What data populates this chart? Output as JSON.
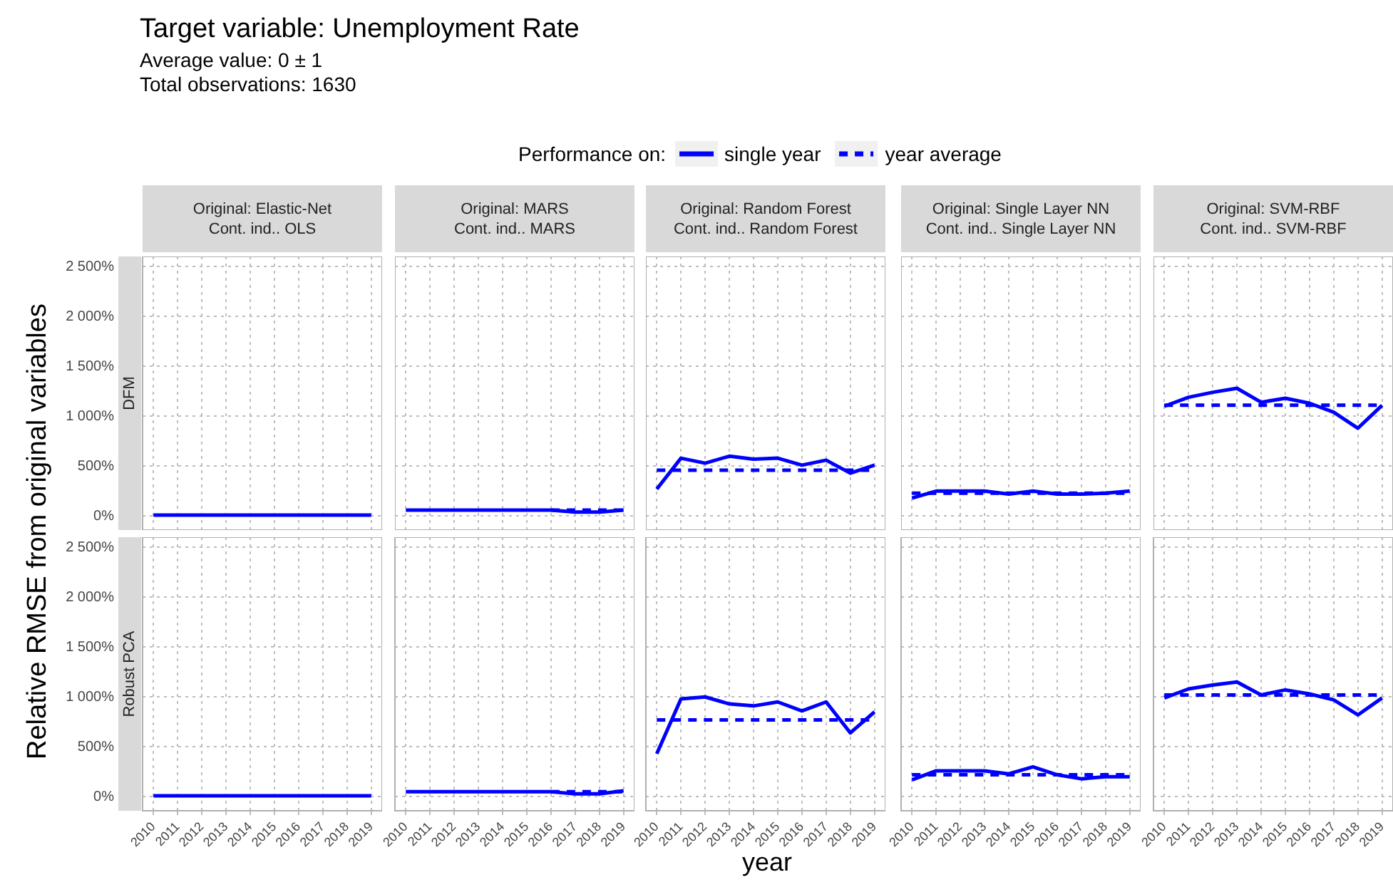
{
  "chart_data": [
    {
      "type": "other",
      "title": "Target variable: Unemployment Rate",
      "subtitle": "Average value: 0 ± 1\nTotal observations: 1630",
      "xlabel": "year",
      "ylabel": "Relative RMSE from original variables"
    },
    {
      "type": "line",
      "title": "Original: Elastic-Net\nCont. ind.. OLS",
      "annotations": [
        "DFM"
      ],
      "legend_title": "Performance on:",
      "legend": "top",
      "tick_labels": "y",
      "grid": true,
      "x": [
        2010,
        2011,
        2012,
        2013,
        2014,
        2015,
        2016,
        2017,
        2018,
        2019
      ],
      "xlim": [
        2009.55,
        2019.45
      ],
      "xticks": [
        2010,
        2011,
        2012,
        2013,
        2014,
        2015,
        2016,
        2017,
        2018,
        2019
      ],
      "ylim": [
        -140,
        2600
      ],
      "yticks": [
        {
          "value": 0,
          "label": "0%"
        },
        {
          "value": 500,
          "label": "500%"
        },
        {
          "value": 1000,
          "label": "1 000%"
        },
        {
          "value": 1500,
          "label": "1 500%"
        },
        {
          "value": 2000,
          "label": "2 000%"
        },
        {
          "value": 2500,
          "label": "2 500%"
        }
      ],
      "series": [
        {
          "name": "single year",
          "color": "#0000ff",
          "line_style": "solid",
          "values": [
            10,
            10,
            10,
            10,
            10,
            10,
            10,
            10,
            10,
            10
          ]
        },
        {
          "name": "year average",
          "color": "#0000ff",
          "line_style": "dashed",
          "values": [
            null,
            null,
            null,
            null,
            null,
            null,
            null,
            null,
            null,
            null
          ]
        }
      ]
    },
    {
      "type": "line",
      "title": "Original: MARS\nCont. ind.. MARS",
      "tick_labels": false,
      "grid": true,
      "x": [
        2010,
        2011,
        2012,
        2013,
        2014,
        2015,
        2016,
        2017,
        2018,
        2019
      ],
      "xlim": [
        2009.55,
        2019.45
      ],
      "xticks": [
        2010,
        2011,
        2012,
        2013,
        2014,
        2015,
        2016,
        2017,
        2018,
        2019
      ],
      "ylim": [
        -140,
        2600
      ],
      "yticks": [
        0,
        500,
        1000,
        1500,
        2000,
        2500
      ],
      "series": [
        {
          "color": "#0000ff",
          "line_style": "solid",
          "values": [
            60,
            60,
            60,
            60,
            60,
            60,
            60,
            40,
            40,
            60
          ]
        },
        {
          "color": "#0000ff",
          "line_style": "dashed",
          "values": [
            null,
            null,
            null,
            null,
            null,
            null,
            60,
            60,
            60,
            60
          ]
        }
      ]
    },
    {
      "type": "line",
      "title": "Original: Random Forest\nCont. ind.. Random Forest",
      "tick_labels": false,
      "grid": true,
      "x": [
        2010,
        2011,
        2012,
        2013,
        2014,
        2015,
        2016,
        2017,
        2018,
        2019
      ],
      "xlim": [
        2009.55,
        2019.45
      ],
      "xticks": [
        2010,
        2011,
        2012,
        2013,
        2014,
        2015,
        2016,
        2017,
        2018,
        2019
      ],
      "ylim": [
        -140,
        2600
      ],
      "yticks": [
        0,
        500,
        1000,
        1500,
        2000,
        2500
      ],
      "series": [
        {
          "color": "#0000ff",
          "line_style": "solid",
          "values": [
            270,
            580,
            530,
            600,
            570,
            580,
            510,
            560,
            430,
            510
          ]
        },
        {
          "color": "#0000ff",
          "line_style": "dashed",
          "values": [
            460,
            460,
            460,
            460,
            460,
            460,
            460,
            460,
            460,
            460
          ]
        }
      ]
    },
    {
      "type": "line",
      "title": "Original: Single Layer NN\nCont. ind.. Single Layer NN",
      "tick_labels": false,
      "grid": true,
      "x": [
        2010,
        2011,
        2012,
        2013,
        2014,
        2015,
        2016,
        2017,
        2018,
        2019
      ],
      "xlim": [
        2009.55,
        2019.45
      ],
      "xticks": [
        2010,
        2011,
        2012,
        2013,
        2014,
        2015,
        2016,
        2017,
        2018,
        2019
      ],
      "ylim": [
        -140,
        2600
      ],
      "yticks": [
        0,
        500,
        1000,
        1500,
        2000,
        2500
      ],
      "series": [
        {
          "color": "#0000ff",
          "line_style": "solid",
          "values": [
            180,
            250,
            250,
            250,
            220,
            250,
            220,
            220,
            230,
            250
          ]
        },
        {
          "color": "#0000ff",
          "line_style": "dashed",
          "values": [
            230,
            230,
            230,
            230,
            230,
            230,
            230,
            230,
            230,
            230
          ]
        }
      ]
    },
    {
      "type": "line",
      "title": "Original: SVM-RBF\nCont. ind.. SVM-RBF",
      "tick_labels": false,
      "grid": true,
      "x": [
        2010,
        2011,
        2012,
        2013,
        2014,
        2015,
        2016,
        2017,
        2018,
        2019
      ],
      "xlim": [
        2009.55,
        2019.45
      ],
      "xticks": [
        2010,
        2011,
        2012,
        2013,
        2014,
        2015,
        2016,
        2017,
        2018,
        2019
      ],
      "ylim": [
        -140,
        2600
      ],
      "yticks": [
        0,
        500,
        1000,
        1500,
        2000,
        2500
      ],
      "series": [
        {
          "color": "#0000ff",
          "line_style": "solid",
          "values": [
            1100,
            1190,
            1240,
            1280,
            1140,
            1180,
            1130,
            1040,
            880,
            1110
          ]
        },
        {
          "color": "#0000ff",
          "line_style": "dashed",
          "values": [
            1110,
            1110,
            1110,
            1110,
            1110,
            1110,
            1110,
            1110,
            1110,
            1110
          ]
        }
      ]
    },
    {
      "type": "line",
      "annotations": [
        "Robust PCA"
      ],
      "grid": true,
      "x": [
        2010,
        2011,
        2012,
        2013,
        2014,
        2015,
        2016,
        2017,
        2018,
        2019
      ],
      "xlim": [
        2009.55,
        2019.45
      ],
      "xticks": [
        2010,
        2011,
        2012,
        2013,
        2014,
        2015,
        2016,
        2017,
        2018,
        2019
      ],
      "ylim": [
        -140,
        2600
      ],
      "yticks": [
        {
          "value": 0,
          "label": "0%"
        },
        {
          "value": 500,
          "label": "500%"
        },
        {
          "value": 1000,
          "label": "1 000%"
        },
        {
          "value": 1500,
          "label": "1 500%"
        },
        {
          "value": 2000,
          "label": "2 000%"
        },
        {
          "value": 2500,
          "label": "2 500%"
        }
      ],
      "series": [
        {
          "color": "#0000ff",
          "line_style": "solid",
          "values": [
            10,
            10,
            10,
            10,
            10,
            10,
            10,
            10,
            10,
            10
          ]
        },
        {
          "color": "#0000ff",
          "line_style": "dashed",
          "values": [
            null,
            null,
            null,
            null,
            null,
            null,
            null,
            null,
            null,
            null
          ]
        }
      ]
    },
    {
      "type": "line",
      "tick_labels": "x",
      "grid": true,
      "x": [
        2010,
        2011,
        2012,
        2013,
        2014,
        2015,
        2016,
        2017,
        2018,
        2019
      ],
      "xlim": [
        2009.55,
        2019.45
      ],
      "xticks": [
        2010,
        2011,
        2012,
        2013,
        2014,
        2015,
        2016,
        2017,
        2018,
        2019
      ],
      "ylim": [
        -140,
        2600
      ],
      "yticks": [
        0,
        500,
        1000,
        1500,
        2000,
        2500
      ],
      "series": [
        {
          "color": "#0000ff",
          "line_style": "solid",
          "values": [
            50,
            50,
            50,
            50,
            50,
            50,
            50,
            30,
            30,
            60
          ]
        },
        {
          "color": "#0000ff",
          "line_style": "dashed",
          "values": [
            null,
            null,
            null,
            null,
            null,
            null,
            50,
            50,
            50,
            50
          ]
        }
      ]
    },
    {
      "type": "line",
      "tick_labels": "x",
      "grid": true,
      "x": [
        2010,
        2011,
        2012,
        2013,
        2014,
        2015,
        2016,
        2017,
        2018,
        2019
      ],
      "xlim": [
        2009.55,
        2019.45
      ],
      "xticks": [
        2010,
        2011,
        2012,
        2013,
        2014,
        2015,
        2016,
        2017,
        2018,
        2019
      ],
      "ylim": [
        -140,
        2600
      ],
      "yticks": [
        0,
        500,
        1000,
        1500,
        2000,
        2500
      ],
      "series": [
        {
          "color": "#0000ff",
          "line_style": "solid",
          "values": [
            430,
            980,
            1000,
            930,
            910,
            950,
            860,
            950,
            640,
            850
          ]
        },
        {
          "color": "#0000ff",
          "line_style": "dashed",
          "values": [
            770,
            770,
            770,
            770,
            770,
            770,
            770,
            770,
            770,
            770
          ]
        }
      ]
    },
    {
      "type": "line",
      "tick_labels": "x",
      "grid": true,
      "x": [
        2010,
        2011,
        2012,
        2013,
        2014,
        2015,
        2016,
        2017,
        2018,
        2019
      ],
      "xlim": [
        2009.55,
        2019.45
      ],
      "xticks": [
        2010,
        2011,
        2012,
        2013,
        2014,
        2015,
        2016,
        2017,
        2018,
        2019
      ],
      "ylim": [
        -140,
        2600
      ],
      "yticks": [
        0,
        500,
        1000,
        1500,
        2000,
        2500
      ],
      "series": [
        {
          "color": "#0000ff",
          "line_style": "solid",
          "values": [
            170,
            260,
            260,
            260,
            230,
            300,
            220,
            180,
            200,
            200
          ]
        },
        {
          "color": "#0000ff",
          "line_style": "dashed",
          "values": [
            220,
            220,
            220,
            220,
            220,
            220,
            220,
            220,
            220,
            220
          ]
        }
      ]
    },
    {
      "type": "line",
      "tick_labels": "x",
      "grid": true,
      "x": [
        2010,
        2011,
        2012,
        2013,
        2014,
        2015,
        2016,
        2017,
        2018,
        2019
      ],
      "xlim": [
        2009.55,
        2019.45
      ],
      "xticks": [
        2010,
        2011,
        2012,
        2013,
        2014,
        2015,
        2016,
        2017,
        2018,
        2019
      ],
      "ylim": [
        -140,
        2600
      ],
      "yticks": [
        0,
        500,
        1000,
        1500,
        2000,
        2500
      ],
      "series": [
        {
          "color": "#0000ff",
          "line_style": "solid",
          "values": [
            990,
            1080,
            1120,
            1150,
            1020,
            1070,
            1030,
            970,
            820,
            990
          ]
        },
        {
          "color": "#0000ff",
          "line_style": "dashed",
          "values": [
            1020,
            1020,
            1020,
            1020,
            1020,
            1020,
            1020,
            1020,
            1020,
            1020
          ]
        }
      ]
    }
  ]
}
